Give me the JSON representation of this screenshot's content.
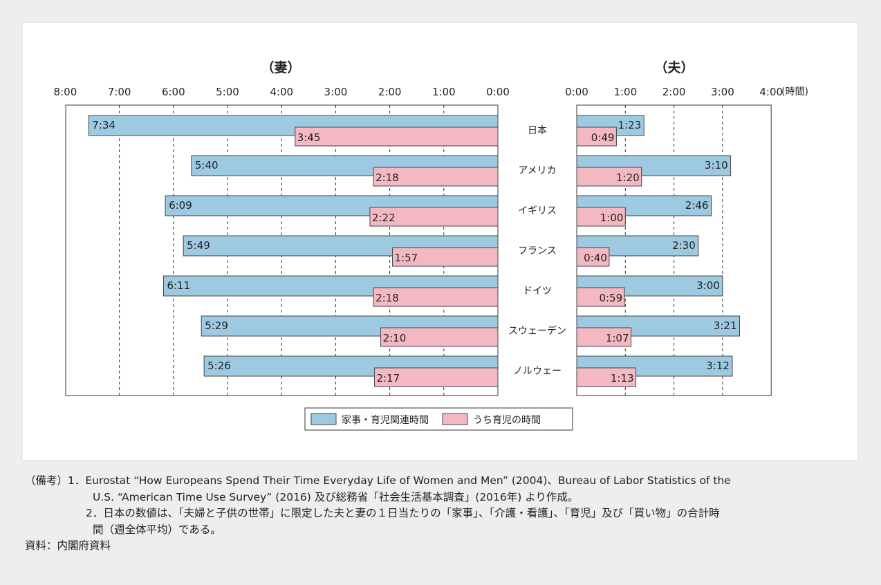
{
  "chart_data": {
    "type": "bar",
    "orientation": "horizontal",
    "panels": [
      {
        "title": "（妻）",
        "xlim": [
          0,
          8
        ],
        "ticks": [
          "8:00",
          "7:00",
          "6:00",
          "5:00",
          "4:00",
          "3:00",
          "2:00",
          "1:00",
          "0:00"
        ],
        "direction": "right-to-left"
      },
      {
        "title": "（夫）",
        "xlim": [
          0,
          4
        ],
        "ticks": [
          "0:00",
          "1:00",
          "2:00",
          "3:00",
          "4:00"
        ],
        "unit": "(時間)",
        "direction": "left-to-right"
      }
    ],
    "categories": [
      "日本",
      "アメリカ",
      "イギリス",
      "フランス",
      "ドイツ",
      "スウェーデン",
      "ノルウェー"
    ],
    "series": [
      {
        "name": "家事・育児関連時間",
        "color": "#9ecae1",
        "wife": [
          "7:34",
          "5:40",
          "6:09",
          "5:49",
          "6:11",
          "5:29",
          "5:26"
        ],
        "husband": [
          "1:23",
          "3:10",
          "2:46",
          "2:30",
          "3:00",
          "3:21",
          "3:12"
        ]
      },
      {
        "name": "うち育児の時間",
        "color": "#f4b8c3",
        "wife": [
          "3:45",
          "2:18",
          "2:22",
          "1:57",
          "2:18",
          "2:10",
          "2:17"
        ],
        "husband": [
          "0:49",
          "1:20",
          "1:00",
          "0:40",
          "0:59",
          "1:07",
          "1:13"
        ]
      }
    ],
    "grid": true,
    "legend": "bottom-center"
  },
  "notes": {
    "label": "（備考）",
    "n1a": "1．Eurostat “How Europeans Spend Their Time Everyday Life of Women and Men” (2004)、Bureau of Labor Statistics of the",
    "n1b": "U.S. “American Time Use Survey” (2016) 及び総務省「社会生活基本調査」(2016年) より作成。",
    "n2a": "2．日本の数値は、「夫婦と子供の世帯」に限定した夫と妻の１日当たりの「家事」、「介護・看護」、「育児」及び「買い物」の合計時",
    "n2b": "間（週全体平均）である。",
    "source": "資料：内閣府資料"
  }
}
